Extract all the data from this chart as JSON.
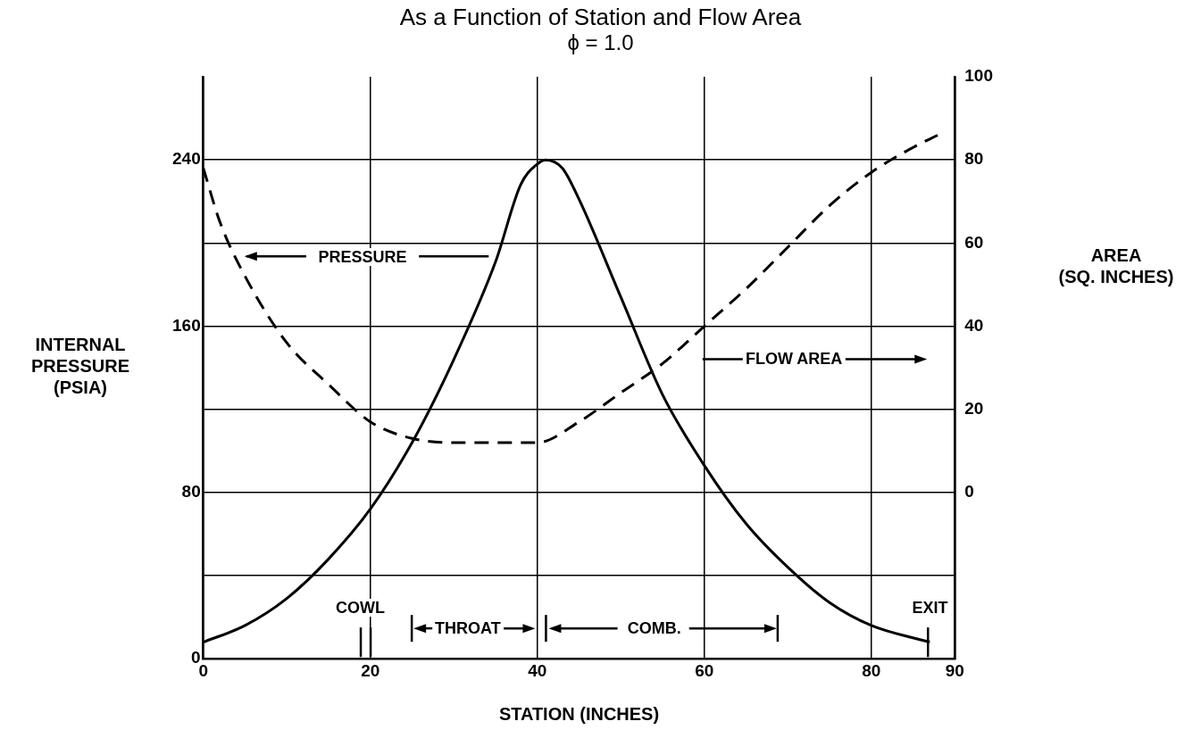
{
  "chart_data": {
    "type": "line",
    "title": "As a Function of Station and Flow Area",
    "subtitle": "ϕ = 1.0",
    "xlabel": "STATION (INCHES)",
    "ylabel": "INTERNAL PRESSURE (PSIA)",
    "y2label": "AREA (SQ. INCHES)",
    "xlim": [
      0,
      90
    ],
    "xticks": [
      0,
      20,
      40,
      60,
      80,
      90
    ],
    "ylim": [
      0,
      280
    ],
    "yticks": [
      0,
      {
        "value": 40,
        "label": null
      },
      80,
      {
        "value": 120,
        "label": null
      },
      160,
      {
        "value": 200,
        "label": null
      },
      240
    ],
    "y2lim": [
      -40,
      100
    ],
    "y2ticks": [
      0,
      20,
      40,
      60,
      80,
      100
    ],
    "grid": true,
    "legend": false,
    "marker": "none",
    "series": [
      {
        "color": "#000000",
        "line_style": "solid",
        "x": [
          0,
          5,
          10,
          15,
          20,
          25,
          30,
          35,
          38,
          40,
          41,
          43,
          45,
          50,
          55,
          60,
          65,
          70,
          75,
          80,
          87
        ],
        "values": [
          8,
          16,
          29,
          48,
          72,
          104,
          144,
          191,
          228,
          238,
          240,
          236,
          221,
          174,
          127,
          93,
          65,
          44,
          27,
          16,
          8
        ]
      },
      {
        "color": "#000000",
        "line_style": "dashed",
        "axis": "y2",
        "x": [
          0,
          2,
          5,
          10,
          15,
          20,
          25,
          30,
          35,
          40,
          45,
          50,
          55,
          60,
          65,
          70,
          75,
          80,
          85,
          88
        ],
        "values": [
          78,
          65,
          52,
          36,
          26,
          17,
          13,
          12,
          12,
          12,
          17,
          24,
          31,
          40,
          49,
          59,
          69,
          77,
          83,
          86
        ]
      }
    ],
    "annotations": [
      "PRESSURE",
      "FLOW AREA",
      "COWL",
      "THROAT",
      "COMB.",
      "EXIT"
    ]
  }
}
